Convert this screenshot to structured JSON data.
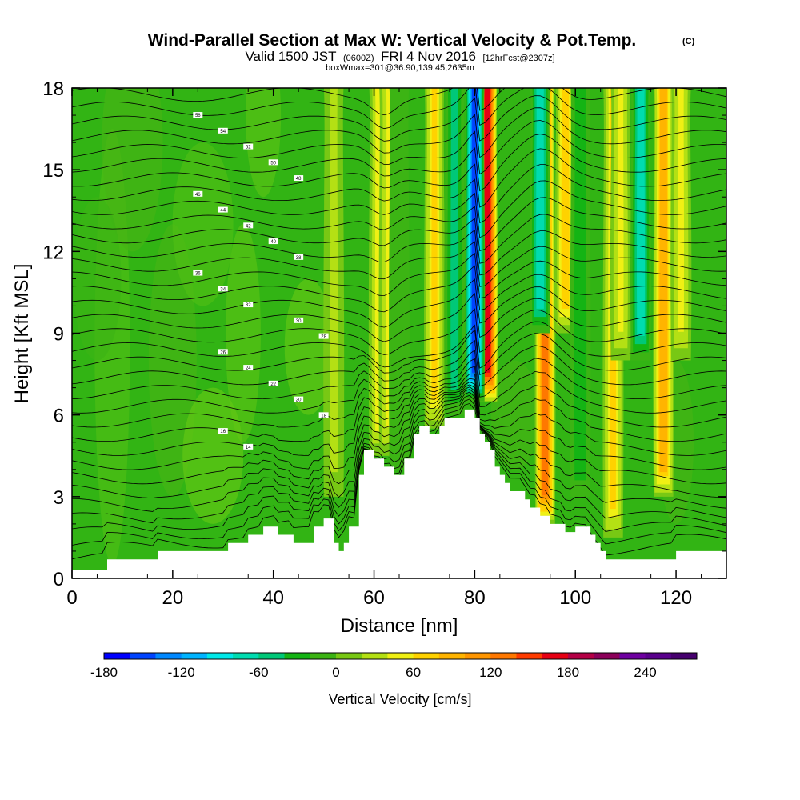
{
  "title": {
    "main": "Wind-Parallel Section at Max W: Vertical Velocity & Pot.Temp.",
    "copyright": "(C)",
    "valid_prefix": "Valid 1500 JST",
    "valid_utc": "(0600Z)",
    "valid_date": "FRI 4 Nov 2016",
    "forecast": "[12hrFcst@2307z]",
    "box_info": "boxWmax=301@36.90,139.45,2635m"
  },
  "chart_data": {
    "type": "heatmap",
    "xlabel": "Distance [nm]",
    "ylabel": "Height [Kft MSL]",
    "xlim": [
      0,
      130
    ],
    "ylim": [
      0,
      18
    ],
    "x_ticks": [
      "0",
      "20",
      "40",
      "60",
      "80",
      "100",
      "120"
    ],
    "y_ticks": [
      "0",
      "3",
      "6",
      "9",
      "12",
      "15",
      "18"
    ],
    "colorbar": {
      "title": "Vertical Velocity [cm/s]",
      "min": -180,
      "max": 280,
      "step": 20,
      "tick_labels": [
        "-180",
        "-120",
        "-60",
        "0",
        "60",
        "120",
        "180",
        "240"
      ],
      "tick_values": [
        -180,
        -120,
        -60,
        0,
        60,
        120,
        180,
        240
      ],
      "colors": [
        "#0000ff",
        "#0044ff",
        "#0088ff",
        "#00b4ff",
        "#00e8e8",
        "#00dcb0",
        "#00c878",
        "#14b414",
        "#3cb414",
        "#78c814",
        "#b4e014",
        "#f0f014",
        "#ffd200",
        "#ffb400",
        "#ff9600",
        "#ff7800",
        "#ff3c00",
        "#e60014",
        "#b40046",
        "#8c005a",
        "#6e00a0",
        "#5a008c",
        "#46006e"
      ]
    },
    "terrain_kft": [
      [
        0,
        0.3
      ],
      [
        7,
        0.3
      ],
      [
        7,
        0.7
      ],
      [
        17,
        0.7
      ],
      [
        17,
        1
      ],
      [
        31,
        1
      ],
      [
        31,
        1.3
      ],
      [
        35,
        1.3
      ],
      [
        35,
        1.6
      ],
      [
        38,
        1.6
      ],
      [
        38,
        1.9
      ],
      [
        41,
        1.9
      ],
      [
        41,
        1.6
      ],
      [
        44,
        1.6
      ],
      [
        44,
        1.3
      ],
      [
        48,
        1.3
      ],
      [
        48,
        1.9
      ],
      [
        50,
        1.9
      ],
      [
        50,
        2.2
      ],
      [
        52,
        2.2
      ],
      [
        52,
        1.3
      ],
      [
        53,
        1.3
      ],
      [
        53,
        1
      ],
      [
        54,
        1
      ],
      [
        54,
        1.3
      ],
      [
        55,
        1.3
      ],
      [
        55,
        1.9
      ],
      [
        57,
        1.9
      ],
      [
        57,
        3.8
      ],
      [
        58,
        3.8
      ],
      [
        58,
        4.7
      ],
      [
        60,
        4.7
      ],
      [
        60,
        4.4
      ],
      [
        62,
        4.4
      ],
      [
        62,
        4.1
      ],
      [
        64,
        4.1
      ],
      [
        64,
        3.8
      ],
      [
        66,
        3.8
      ],
      [
        66,
        4.4
      ],
      [
        68,
        4.4
      ],
      [
        68,
        5.3
      ],
      [
        69,
        5.3
      ],
      [
        69,
        5.6
      ],
      [
        71,
        5.6
      ],
      [
        71,
        5.3
      ],
      [
        73,
        5.3
      ],
      [
        73,
        5.6
      ],
      [
        74,
        5.6
      ],
      [
        74,
        5.9
      ],
      [
        78,
        5.9
      ],
      [
        78,
        6.2
      ],
      [
        80,
        6.2
      ],
      [
        80,
        5.9
      ],
      [
        81,
        5.9
      ],
      [
        81,
        5.3
      ],
      [
        82,
        5.3
      ],
      [
        82,
        5
      ],
      [
        83,
        5
      ],
      [
        83,
        4.7
      ],
      [
        84,
        4.7
      ],
      [
        84,
        4.1
      ],
      [
        85,
        4.1
      ],
      [
        85,
        3.8
      ],
      [
        86,
        3.8
      ],
      [
        86,
        3.5
      ],
      [
        87,
        3.5
      ],
      [
        87,
        3.2
      ],
      [
        90,
        3.2
      ],
      [
        90,
        2.9
      ],
      [
        91,
        2.9
      ],
      [
        91,
        2.6
      ],
      [
        93,
        2.6
      ],
      [
        93,
        2.3
      ],
      [
        95,
        2.3
      ],
      [
        95,
        2.0
      ],
      [
        98,
        2.0
      ],
      [
        98,
        1.7
      ],
      [
        100,
        1.7
      ],
      [
        100,
        1.9
      ],
      [
        103,
        1.9
      ],
      [
        103,
        1.6
      ],
      [
        104,
        1.6
      ],
      [
        104,
        1.3
      ],
      [
        105,
        1.3
      ],
      [
        105,
        1.0
      ],
      [
        106,
        1.0
      ],
      [
        106,
        0.7
      ],
      [
        120,
        0.7
      ],
      [
        120,
        1
      ],
      [
        130,
        1
      ]
    ],
    "updraft_bands": [
      {
        "x": 61,
        "w": 52,
        "y0": 4.5
      },
      {
        "x": 63,
        "w": 45,
        "y0": 4.5
      },
      {
        "x": 72,
        "w": 60,
        "y0": 5.5
      },
      {
        "x": 82.5,
        "w": 170,
        "y0": 6.5
      },
      {
        "x": 94,
        "w": 120,
        "y0": 2.0
      },
      {
        "x": 98,
        "w": 70,
        "y0": 9
      },
      {
        "x": 107.5,
        "w": 60,
        "y0": 1.5
      },
      {
        "x": 109,
        "w": 45,
        "y0": 8
      },
      {
        "x": 117.5,
        "w": 95,
        "y0": 3
      },
      {
        "x": 121,
        "w": 45,
        "y0": 8
      },
      {
        "x": 52,
        "w": 25,
        "y0": 3
      }
    ],
    "downdraft_bands": [
      {
        "x": 65,
        "w": 15,
        "y0": 4
      },
      {
        "x": 76,
        "w": 50,
        "y0": 6
      },
      {
        "x": 80,
        "w": 160,
        "y0": 6.5
      },
      {
        "x": 93,
        "w": 80,
        "y0": 9
      },
      {
        "x": 101,
        "w": 35,
        "y0": 3
      },
      {
        "x": 113,
        "w": 70,
        "y0": 8
      }
    ],
    "contour_labels": [
      "56",
      "54",
      "52",
      "50",
      "48",
      "46",
      "44",
      "42",
      "40",
      "38",
      "36",
      "34",
      "32",
      "30",
      "28",
      "26",
      "24",
      "22",
      "20",
      "18",
      "16",
      "14"
    ]
  }
}
